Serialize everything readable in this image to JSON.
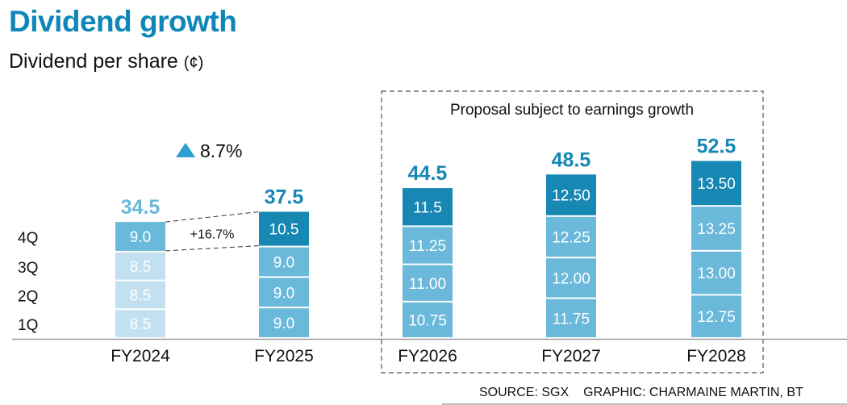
{
  "header": {
    "title": "Dividend growth",
    "subtitle": "Dividend per share",
    "unit": "(¢)"
  },
  "footer": {
    "source": "SOURCE: SGX",
    "credit": "GRAPHIC: CHARMAINE MARTIN, BT"
  },
  "chart_data": {
    "type": "bar",
    "stacked": true,
    "title": "Dividend growth",
    "subtitle": "Dividend per share (¢)",
    "xlabel": "",
    "ylabel": "Dividend per share (¢)",
    "ylim": [
      0,
      52.5
    ],
    "grid": false,
    "categories": [
      "FY2024",
      "FY2025",
      "FY2026",
      "FY2027",
      "FY2028"
    ],
    "row_labels": [
      "1Q",
      "2Q",
      "3Q",
      "4Q"
    ],
    "series": [
      {
        "name": "1Q",
        "values": [
          8.5,
          9.0,
          10.75,
          11.75,
          12.75
        ],
        "labels": [
          "8.5",
          "9.0",
          "10.75",
          "11.75",
          "12.75"
        ]
      },
      {
        "name": "2Q",
        "values": [
          8.5,
          9.0,
          11.0,
          12.0,
          13.0
        ],
        "labels": [
          "8.5",
          "9.0",
          "11.00",
          "12.00",
          "13.00"
        ]
      },
      {
        "name": "3Q",
        "values": [
          8.5,
          9.0,
          11.25,
          12.25,
          13.25
        ],
        "labels": [
          "8.5",
          "9.0",
          "11.25",
          "12.25",
          "13.25"
        ]
      },
      {
        "name": "4Q",
        "values": [
          9.0,
          10.5,
          11.5,
          12.5,
          13.5
        ],
        "labels": [
          "9.0",
          "10.5",
          "11.5",
          "12.50",
          "13.50"
        ]
      }
    ],
    "totals": [
      34.5,
      37.5,
      44.5,
      48.5,
      52.5
    ],
    "total_labels": [
      "34.5",
      "37.5",
      "44.5",
      "48.5",
      "52.5"
    ],
    "annotations": {
      "total_growth": {
        "label": "8.7%",
        "icon": "triangle-up-icon",
        "between": [
          "FY2024",
          "FY2025"
        ]
      },
      "q4_growth": {
        "label": "+16.7%",
        "between": [
          "FY2024",
          "FY2025"
        ],
        "series": "4Q"
      },
      "proposal_box": {
        "label": "Proposal subject to earnings growth",
        "categories": [
          "FY2026",
          "FY2027",
          "FY2028"
        ]
      }
    },
    "colors": {
      "fy2024_q123": "#c2e0ef",
      "fy2024_q4": "#6ab8da",
      "base": "#6ab8da",
      "highlight": "#1787b4",
      "total_fy2024": "#6ab8da",
      "total": "#1787b4",
      "arrow": "#2a9fd0"
    }
  }
}
